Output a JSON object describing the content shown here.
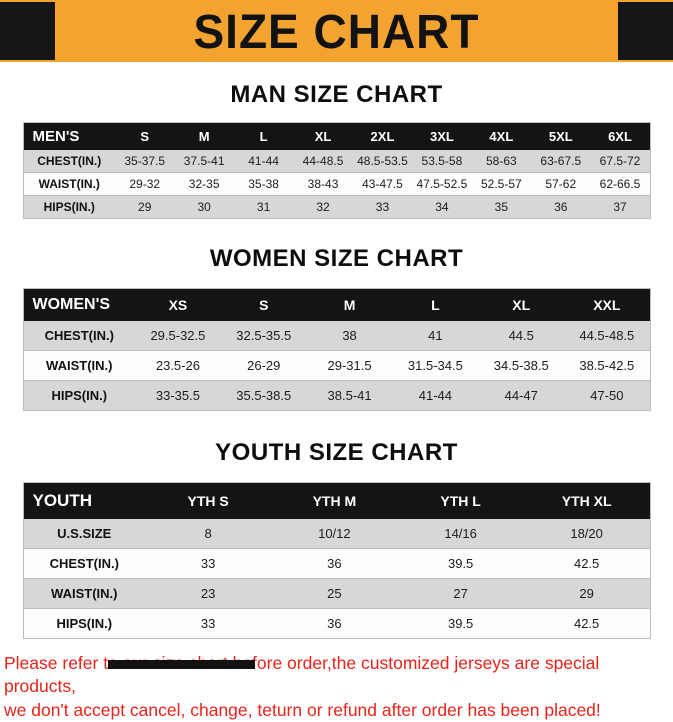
{
  "banner": {
    "title": "SIZE CHART",
    "bg_color": "#F3A32F",
    "block_color": "#161616"
  },
  "sections": [
    {
      "heading": "MAN SIZE CHART",
      "variant": "men",
      "table": {
        "header": [
          "MEN'S",
          "S",
          "M",
          "L",
          "XL",
          "2XL",
          "3XL",
          "4XL",
          "5XL",
          "6XL"
        ],
        "rows": [
          [
            "CHEST(IN.)",
            "35-37.5",
            "37.5-41",
            "41-44",
            "44-48.5",
            "48.5-53.5",
            "53.5-58",
            "58-63",
            "63-67.5",
            "67.5-72"
          ],
          [
            "WAIST(IN.)",
            "29-32",
            "32-35",
            "35-38",
            "38-43",
            "43-47.5",
            "47.5-52.5",
            "52.5-57",
            "57-62",
            "62-66.5"
          ],
          [
            "HIPS(IN.)",
            "29",
            "30",
            "31",
            "32",
            "33",
            "34",
            "35",
            "36",
            "37"
          ]
        ]
      }
    },
    {
      "heading": "WOMEN SIZE CHART",
      "variant": "women",
      "table": {
        "header": [
          "WOMEN'S",
          "XS",
          "S",
          "M",
          "L",
          "XL",
          "XXL"
        ],
        "rows": [
          [
            "CHEST(IN.)",
            "29.5-32.5",
            "32.5-35.5",
            "38",
            "41",
            "44.5",
            "44.5-48.5"
          ],
          [
            "WAIST(IN.)",
            "23.5-26",
            "26-29",
            "29-31.5",
            "31.5-34.5",
            "34.5-38.5",
            "38.5-42.5"
          ],
          [
            "HIPS(IN.)",
            "33-35.5",
            "35.5-38.5",
            "38.5-41",
            "41-44",
            "44-47",
            "47-50"
          ]
        ]
      }
    },
    {
      "heading": "YOUTH SIZE CHART",
      "variant": "youth",
      "table": {
        "header": [
          "YOUTH",
          "YTH S",
          "YTH M",
          "YTH L",
          "YTH XL"
        ],
        "rows": [
          [
            "U.S.SIZE",
            "8",
            "10/12",
            "14/16",
            "18/20"
          ],
          [
            "CHEST(IN.)",
            "33",
            "36",
            "39.5",
            "42.5"
          ],
          [
            "WAIST(IN.)",
            "23",
            "25",
            "27",
            "29"
          ],
          [
            "HIPS(IN.)",
            "33",
            "36",
            "39.5",
            "42.5"
          ]
        ]
      }
    }
  ],
  "footer": {
    "line1": "Please refer to our size chart before order,the customized jerseys are special products,",
    "line2": "we don't accept cancel, change, teturn or refund after order has been placed!",
    "text_color": "#E8231A"
  }
}
